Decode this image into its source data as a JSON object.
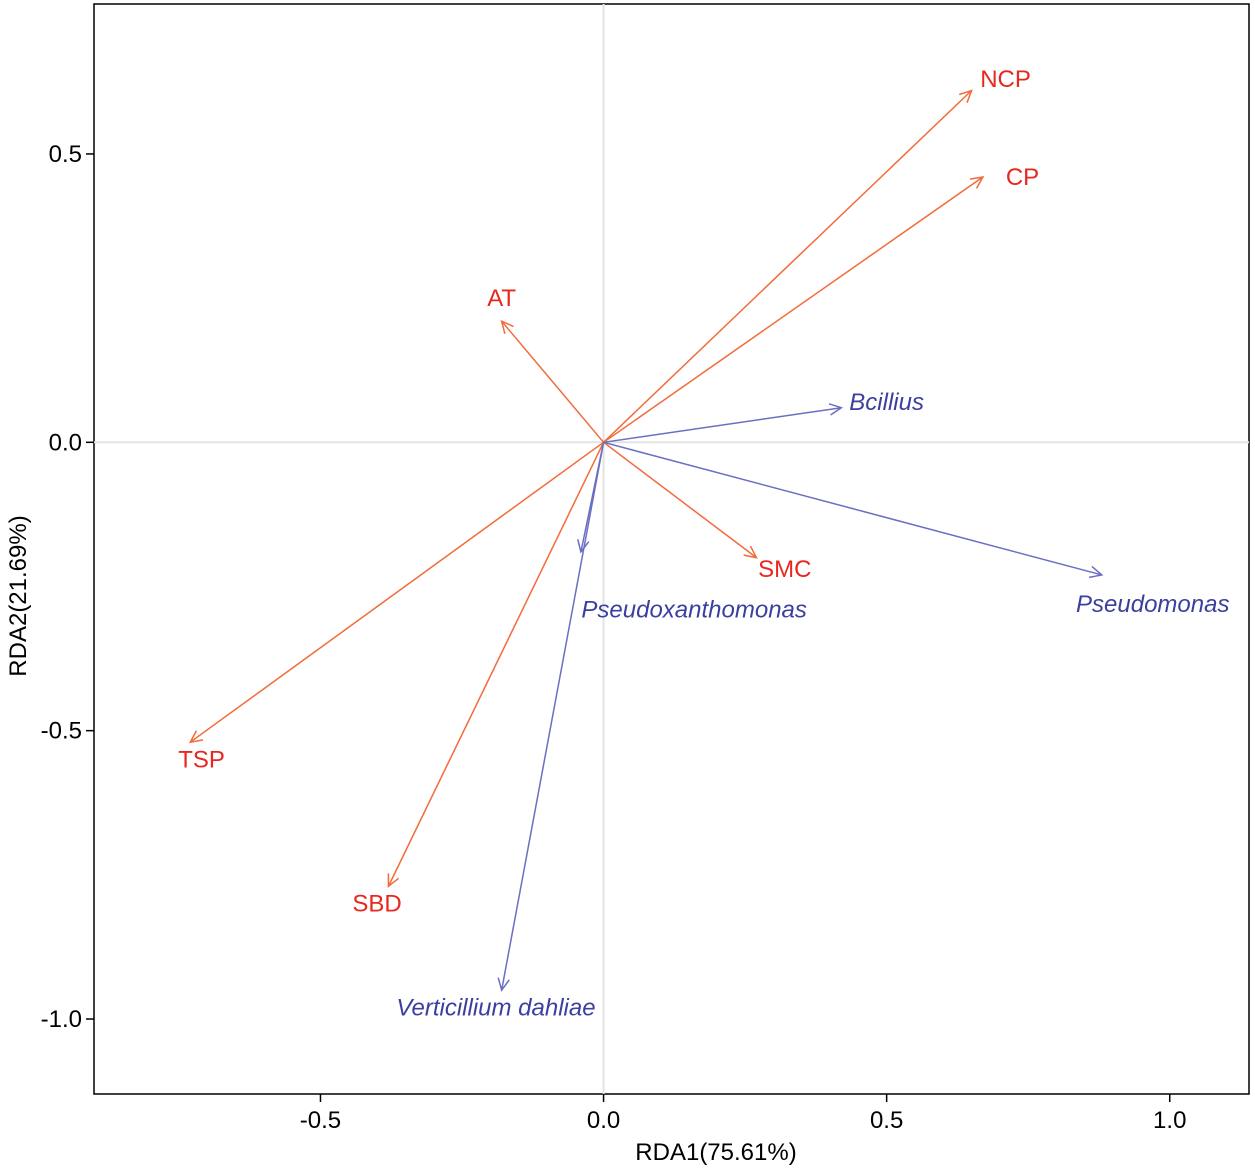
{
  "chart_data": {
    "type": "biplot",
    "title": "",
    "xlabel": "RDA1(75.61%)",
    "ylabel": "RDA2(21.69%)",
    "xlim": [
      -0.9,
      1.14
    ],
    "ylim": [
      -1.13,
      0.76
    ],
    "x_ticks": [
      -0.5,
      0.0,
      0.5,
      1.0
    ],
    "x_tick_labels": [
      "-0.5",
      "0.0",
      "0.5",
      "1.0"
    ],
    "y_ticks": [
      -1.0,
      -0.5,
      0.0,
      0.5
    ],
    "y_tick_labels": [
      "-1.0",
      "-0.5",
      "0.0",
      "0.5"
    ],
    "reference_lines": {
      "x": 0,
      "y": 0
    },
    "colors": {
      "environment": "#f26b3a",
      "environment_label": "#e8281e",
      "species": "#6a6fc0",
      "species_label": "#3b3f9e",
      "axis": "#000000",
      "reference": "#e3e3e3"
    },
    "series": [
      {
        "name": "Environmental factors",
        "vectors": [
          {
            "name": "NCP",
            "x": 0.65,
            "y": 0.61,
            "label_x": 0.71,
            "label_y": 0.63
          },
          {
            "name": "CP",
            "x": 0.67,
            "y": 0.46,
            "label_x": 0.74,
            "label_y": 0.46
          },
          {
            "name": "AT",
            "x": -0.18,
            "y": 0.21,
            "label_x": -0.18,
            "label_y": 0.25
          },
          {
            "name": "SMC",
            "x": 0.27,
            "y": -0.2,
            "label_x": 0.32,
            "label_y": -0.22
          },
          {
            "name": "TSP",
            "x": -0.73,
            "y": -0.52,
            "label_x": -0.71,
            "label_y": -0.55
          },
          {
            "name": "SBD",
            "x": -0.38,
            "y": -0.77,
            "label_x": -0.4,
            "label_y": -0.8
          }
        ]
      },
      {
        "name": "Microbial genera",
        "vectors": [
          {
            "name": "Bcillius",
            "x": 0.42,
            "y": 0.06,
            "label_x": 0.5,
            "label_y": 0.07
          },
          {
            "name": "Pseudomonas",
            "x": 0.88,
            "y": -0.23,
            "label_x": 0.97,
            "label_y": -0.28
          },
          {
            "name": "Pseudoxanthomonas",
            "x": -0.04,
            "y": -0.19,
            "label_x": 0.16,
            "label_y": -0.29
          },
          {
            "name": "Verticillium dahliae",
            "x": -0.18,
            "y": -0.95,
            "label_x": -0.19,
            "label_y": -0.98
          }
        ]
      }
    ]
  }
}
